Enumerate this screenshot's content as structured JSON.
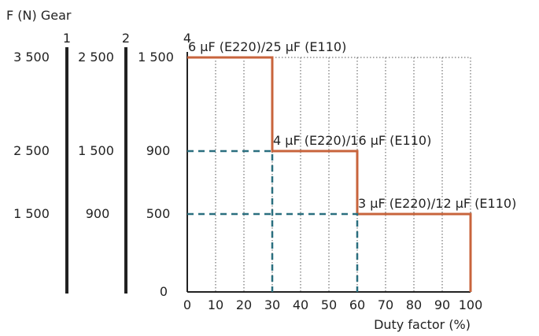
{
  "chart_data": {
    "type": "line",
    "ylabel": "F (N) Gear",
    "xlabel": "Duty factor (%)",
    "xlim": [
      0,
      100
    ],
    "x_ticks": [
      "0",
      "10",
      "20",
      "30",
      "40",
      "50",
      "60",
      "70",
      "80",
      "90",
      "100"
    ],
    "gear_axes": [
      {
        "gear": "1",
        "ticks": [
          "3 500",
          "2 500",
          "1 500"
        ]
      },
      {
        "gear": "2",
        "ticks": [
          "2 500",
          "1 500",
          "900"
        ]
      },
      {
        "gear": "4",
        "ticks": [
          "1 500",
          "900",
          "500",
          "0"
        ]
      }
    ],
    "gear4_levels": [
      1500,
      900,
      500,
      0
    ],
    "series": [
      {
        "style": "solid",
        "color": "#c8643c",
        "points": [
          [
            0,
            1500
          ],
          [
            30,
            1500
          ],
          [
            30,
            900
          ],
          [
            60,
            900
          ],
          [
            60,
            500
          ],
          [
            100,
            500
          ],
          [
            100,
            0
          ]
        ]
      },
      {
        "style": "dashed",
        "color": "#2a6f7f",
        "points": [
          [
            0,
            900
          ],
          [
            30,
            900
          ],
          [
            30,
            0
          ]
        ]
      },
      {
        "style": "dashed",
        "color": "#2a6f7f",
        "points": [
          [
            0,
            500
          ],
          [
            60,
            500
          ],
          [
            60,
            0
          ]
        ]
      }
    ],
    "annotations": [
      {
        "text": "6 µF (E220)/25 µF (E110)",
        "x": 5,
        "y": 1500
      },
      {
        "text": "4 µF (E220)/16 µF (E110)",
        "x": 35,
        "y": 900
      },
      {
        "text": "3 µF (E220)/12 µF (E110)",
        "x": 65,
        "y": 500
      }
    ],
    "grid": true
  }
}
